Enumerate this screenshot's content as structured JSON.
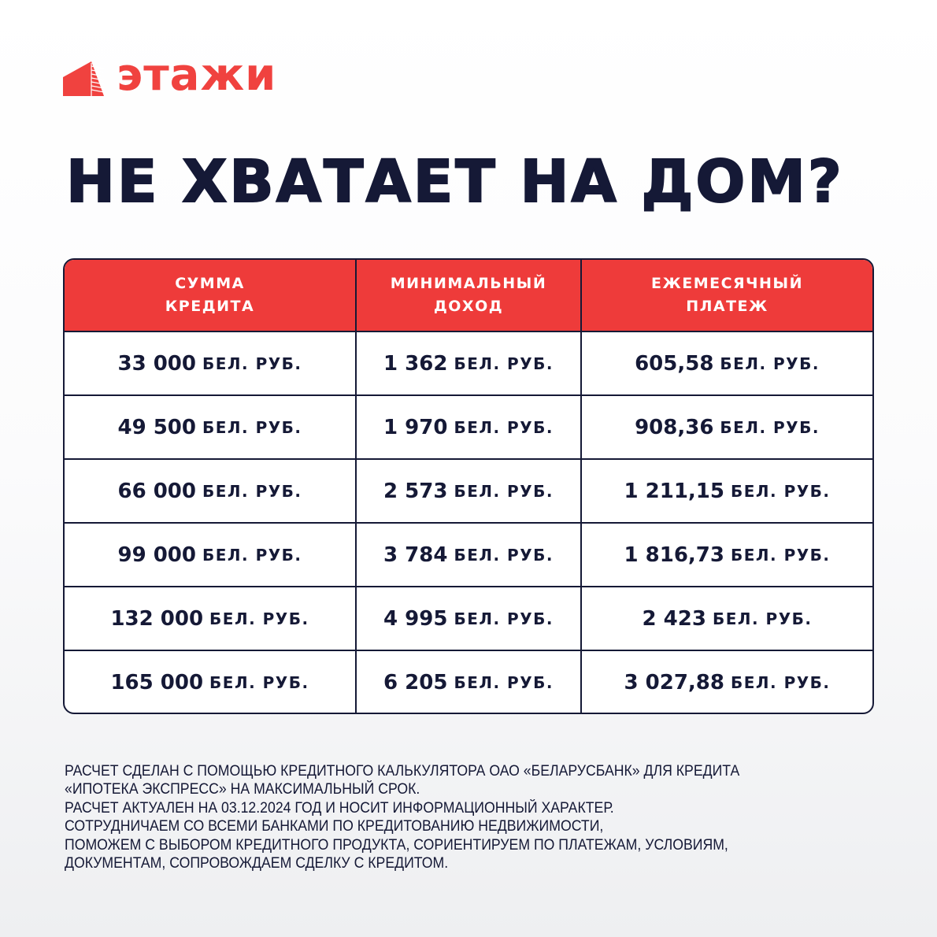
{
  "brand": {
    "name": "этажи",
    "color": "#f0423f"
  },
  "title": "НЕ ХВАТАЕТ НА ДОМ?",
  "table": {
    "header_color": "#ee3b3a",
    "columns": [
      "СУММА\nКРЕДИТА",
      "МИНИМАЛЬНЫЙ\nДОХОД",
      "ЕЖЕМЕСЯЧНЫЙ\nПЛАТЕЖ"
    ],
    "unit": "БЕЛ. РУБ.",
    "rows": [
      [
        "33 000",
        "1 362",
        "605,58"
      ],
      [
        "49 500",
        "1 970",
        "908,36"
      ],
      [
        "66 000",
        "2 573",
        "1 211,15"
      ],
      [
        "99 000",
        "3 784",
        "1 816,73"
      ],
      [
        "132 000",
        "4 995",
        "2 423"
      ],
      [
        "165 000",
        "6 205",
        "3 027,88"
      ]
    ]
  },
  "footer": [
    "РАСЧЕТ СДЕЛАН С ПОМОЩЬЮ КРЕДИТНОГО КАЛЬКУЛЯТОРА ОАО «БЕЛАРУСБАНК» ДЛЯ КРЕДИТА",
    "«ИПОТЕКА ЭКСПРЕСС» НА МАКСИМАЛЬНЫЙ СРОК.",
    "РАСЧЕТ АКТУАЛЕН НА 03.12.2024 ГОД И НОСИТ ИНФОРМАЦИОННЫЙ ХАРАКТЕР.",
    "СОТРУДНИЧАЕМ СО ВСЕМИ БАНКАМИ ПО КРЕДИТОВАНИЮ НЕДВИЖИМОСТИ,",
    "ПОМОЖЕМ С ВЫБОРОМ КРЕДИТНОГО ПРОДУКТА, СОРИЕНТИРУЕМ ПО ПЛАТЕЖАМ, УСЛОВИЯМ,",
    "ДОКУМЕНТАМ, СОПРОВОЖДАЕМ СДЕЛКУ С КРЕДИТОМ."
  ]
}
